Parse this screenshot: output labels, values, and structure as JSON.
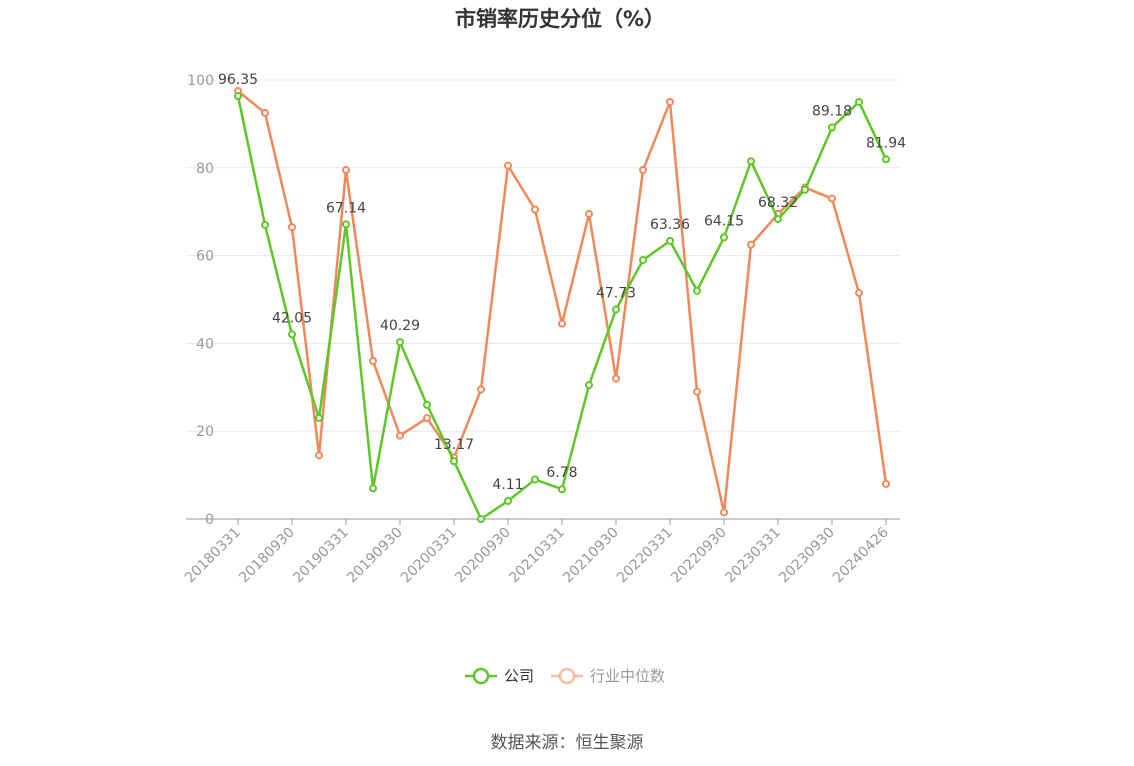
{
  "chart_data": {
    "type": "line",
    "title": "市销率历史分位（%）",
    "source": "数据来源：恒生聚源",
    "ylim": [
      0,
      100
    ],
    "yticks": [
      "0",
      "20",
      "40",
      "60",
      "80",
      "100"
    ],
    "xtick_labels": [
      "20180331",
      "20180930",
      "20190331",
      "20190930",
      "20200331",
      "20200930",
      "20210331",
      "20210930",
      "20220331",
      "20220930",
      "20230331",
      "20230930",
      "20240426"
    ],
    "x": [
      "20180331",
      "20180630",
      "20180930",
      "20181231",
      "20190331",
      "20190630",
      "20190930",
      "20191231",
      "20200331",
      "20200630",
      "20200930",
      "20201231",
      "20210331",
      "20210630",
      "20210930",
      "20211231",
      "20220331",
      "20220630",
      "20220930",
      "20221231",
      "20230331",
      "20230630",
      "20230930",
      "20231231",
      "20240426"
    ],
    "series": [
      {
        "name": "公司",
        "color": "#5ec727",
        "values": [
          96.35,
          67.0,
          42.05,
          23.0,
          67.14,
          7.0,
          40.29,
          26.0,
          13.17,
          0.0,
          4.11,
          9.0,
          6.78,
          30.5,
          47.73,
          59.0,
          63.36,
          52.0,
          64.15,
          81.5,
          68.32,
          75.0,
          89.18,
          95.0,
          81.94
        ],
        "labels": {
          "0": "96.35",
          "2": "42.05",
          "4": "67.14",
          "6": "40.29",
          "8": "13.17",
          "10": "4.11",
          "12": "6.78",
          "14": "47.73",
          "16": "63.36",
          "18": "64.15",
          "20": "68.32",
          "22": "89.18",
          "24": "81.94"
        }
      },
      {
        "name": "行业中位数",
        "color": "#f0895a",
        "values": [
          97.5,
          92.5,
          66.5,
          14.5,
          79.5,
          36.0,
          19.0,
          23.0,
          14.0,
          29.5,
          80.5,
          70.5,
          44.5,
          69.5,
          32.0,
          79.5,
          95.0,
          29.0,
          1.5,
          62.5,
          69.5,
          75.5,
          73.0,
          51.5,
          8.0
        ]
      }
    ],
    "legend": {
      "position": "bottom"
    },
    "grid": true
  }
}
